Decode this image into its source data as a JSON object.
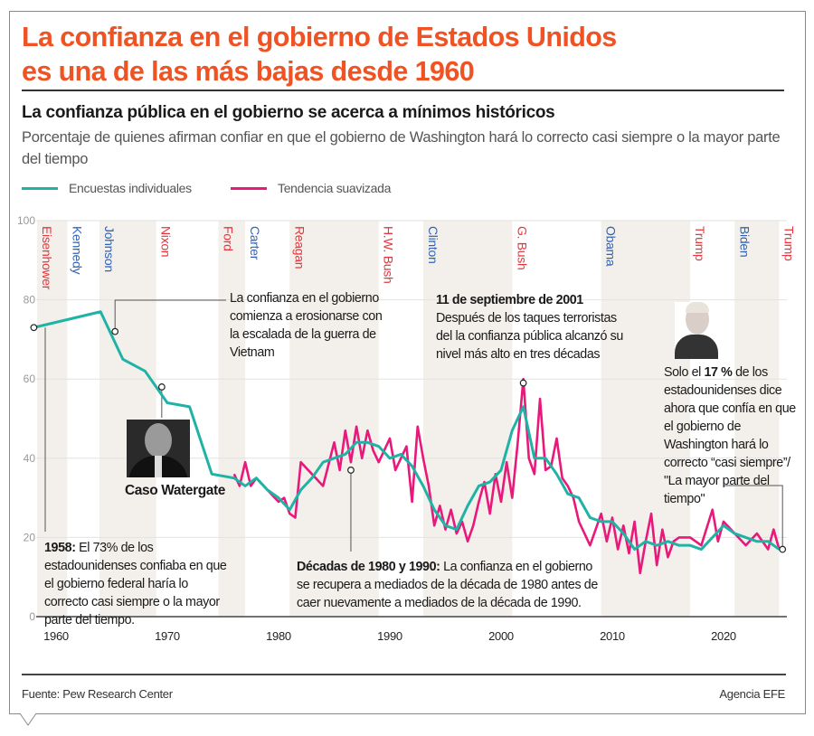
{
  "header": {
    "title_line1": "La confianza en el gobierno de Estados Unidos",
    "title_line2": "es una de las más bajas desde 1960",
    "subtitle": "La confianza pública en el gobierno se acerca a mínimos históricos",
    "description": "Porcentaje de quienes afirman confiar en que el gobierno de Washington hará lo correcto casi siempre o la mayor parte del tiempo"
  },
  "colors": {
    "title": "#f05323",
    "teal": "#1fb3a6",
    "pink": "#e8197a",
    "republican": "#e8343c",
    "democrat": "#2f63b8",
    "band": "#f3f0eb"
  },
  "chart_data": {
    "type": "line",
    "xlim": [
      1958,
      2026
    ],
    "ylim": [
      0,
      100
    ],
    "yticks": [
      0,
      20,
      40,
      60,
      80,
      100
    ],
    "xticks": [
      1960,
      1970,
      1980,
      1990,
      2000,
      2010,
      2020
    ],
    "grid": true,
    "legend_position": "top-left",
    "series": [
      {
        "name": "Encuestas individuales",
        "color": "#1fb3a6",
        "points": [
          [
            1958,
            73
          ],
          [
            1964,
            77
          ],
          [
            1966,
            65
          ],
          [
            1968,
            62
          ],
          [
            1970,
            54
          ],
          [
            1972,
            53
          ],
          [
            1974,
            36
          ],
          [
            1976,
            35
          ],
          [
            1977,
            33
          ],
          [
            1978,
            35
          ],
          [
            1979,
            32
          ],
          [
            1980,
            30
          ],
          [
            1981,
            27
          ],
          [
            1982,
            32
          ],
          [
            1983,
            35
          ],
          [
            1984,
            39
          ],
          [
            1985,
            40
          ],
          [
            1986,
            41
          ],
          [
            1987,
            44
          ],
          [
            1988,
            44
          ],
          [
            1989,
            43
          ],
          [
            1990,
            40
          ],
          [
            1991,
            41
          ],
          [
            1992,
            38
          ],
          [
            1993,
            33
          ],
          [
            1994,
            27
          ],
          [
            1995,
            23
          ],
          [
            1996,
            22
          ],
          [
            1997,
            28
          ],
          [
            1998,
            33
          ],
          [
            1999,
            34
          ],
          [
            2000,
            37
          ],
          [
            2001,
            47
          ],
          [
            2002,
            53
          ],
          [
            2003,
            40
          ],
          [
            2004,
            40
          ],
          [
            2005,
            36
          ],
          [
            2006,
            31
          ],
          [
            2007,
            30
          ],
          [
            2008,
            25
          ],
          [
            2009,
            24
          ],
          [
            2010,
            24
          ],
          [
            2011,
            21
          ],
          [
            2012,
            17
          ],
          [
            2013,
            19
          ],
          [
            2014,
            18
          ],
          [
            2015,
            19
          ],
          [
            2016,
            18
          ],
          [
            2017,
            18
          ],
          [
            2018,
            17
          ],
          [
            2019,
            20
          ],
          [
            2020,
            23
          ],
          [
            2021,
            21
          ],
          [
            2022,
            20
          ],
          [
            2023,
            19
          ],
          [
            2024,
            19
          ],
          [
            2025,
            17
          ]
        ]
      },
      {
        "name": "Tendencia suavizada",
        "color": "#e8197a",
        "points": [
          [
            1976,
            36
          ],
          [
            1976.5,
            33
          ],
          [
            1977,
            39
          ],
          [
            1977.5,
            33
          ],
          [
            1978,
            35
          ],
          [
            1979,
            32
          ],
          [
            1980,
            29
          ],
          [
            1980.5,
            30
          ],
          [
            1981,
            26
          ],
          [
            1981.5,
            25
          ],
          [
            1982,
            39
          ],
          [
            1983,
            36
          ],
          [
            1984,
            33
          ],
          [
            1985,
            44
          ],
          [
            1985.5,
            37
          ],
          [
            1986,
            47
          ],
          [
            1986.5,
            39
          ],
          [
            1987,
            48
          ],
          [
            1987.5,
            40
          ],
          [
            1988,
            47
          ],
          [
            1988.5,
            42
          ],
          [
            1989,
            39
          ],
          [
            1990,
            45
          ],
          [
            1990.5,
            37
          ],
          [
            1991,
            40
          ],
          [
            1991.5,
            43
          ],
          [
            1992,
            29
          ],
          [
            1992.5,
            48
          ],
          [
            1993,
            40
          ],
          [
            1993.5,
            33
          ],
          [
            1994,
            23
          ],
          [
            1994.5,
            28
          ],
          [
            1995,
            22
          ],
          [
            1995.5,
            27
          ],
          [
            1996,
            21
          ],
          [
            1996.5,
            24
          ],
          [
            1997,
            19
          ],
          [
            1997.5,
            23
          ],
          [
            1998,
            29
          ],
          [
            1998.5,
            34
          ],
          [
            1999,
            26
          ],
          [
            1999.5,
            36
          ],
          [
            2000,
            29
          ],
          [
            2000.5,
            39
          ],
          [
            2001,
            30
          ],
          [
            2001.5,
            44
          ],
          [
            2002,
            60
          ],
          [
            2002.5,
            40
          ],
          [
            2003,
            36
          ],
          [
            2003.5,
            55
          ],
          [
            2004,
            37
          ],
          [
            2004.5,
            38
          ],
          [
            2005,
            45
          ],
          [
            2005.5,
            35
          ],
          [
            2006,
            33
          ],
          [
            2006.5,
            30
          ],
          [
            2007,
            24
          ],
          [
            2008,
            18
          ],
          [
            2009,
            26
          ],
          [
            2009.5,
            19
          ],
          [
            2010,
            25
          ],
          [
            2010.5,
            17
          ],
          [
            2011,
            23
          ],
          [
            2011.5,
            16
          ],
          [
            2012,
            24
          ],
          [
            2012.5,
            11
          ],
          [
            2013,
            19
          ],
          [
            2013.5,
            26
          ],
          [
            2014,
            13
          ],
          [
            2014.5,
            22
          ],
          [
            2015,
            15
          ],
          [
            2015.5,
            19
          ],
          [
            2016,
            20
          ],
          [
            2017,
            20
          ],
          [
            2018,
            18
          ],
          [
            2019,
            27
          ],
          [
            2019.5,
            19
          ],
          [
            2020,
            24
          ],
          [
            2022,
            18
          ],
          [
            2023,
            21
          ],
          [
            2024,
            17
          ],
          [
            2024.5,
            22
          ],
          [
            2025,
            17
          ]
        ]
      }
    ],
    "presidents": [
      {
        "name": "Eisenhower",
        "party": "R",
        "start": 1958.3,
        "end": 1961,
        "shaded": true
      },
      {
        "name": "Kennedy",
        "party": "D",
        "start": 1961,
        "end": 1963.9,
        "shaded": false
      },
      {
        "name": "Johnson",
        "party": "D",
        "start": 1963.9,
        "end": 1969,
        "shaded": true
      },
      {
        "name": "Nixon",
        "party": "R",
        "start": 1969,
        "end": 1974.6,
        "shaded": false
      },
      {
        "name": "Ford",
        "party": "R",
        "start": 1974.6,
        "end": 1977,
        "shaded": true
      },
      {
        "name": "Carter",
        "party": "D",
        "start": 1977,
        "end": 1981,
        "shaded": false
      },
      {
        "name": "Reagan",
        "party": "R",
        "start": 1981,
        "end": 1989,
        "shaded": true
      },
      {
        "name": "H.W. Bush",
        "party": "R",
        "start": 1989,
        "end": 1993,
        "shaded": false
      },
      {
        "name": "Clinton",
        "party": "D",
        "start": 1993,
        "end": 2001,
        "shaded": true
      },
      {
        "name": "G. Bush",
        "party": "R",
        "start": 2001,
        "end": 2009,
        "shaded": false
      },
      {
        "name": "Obama",
        "party": "D",
        "start": 2009,
        "end": 2017,
        "shaded": true
      },
      {
        "name": "Trump",
        "party": "R",
        "start": 2017,
        "end": 2021,
        "shaded": false
      },
      {
        "name": "Biden",
        "party": "D",
        "start": 2021,
        "end": 2025,
        "shaded": true
      },
      {
        "name": "Trump",
        "party": "R",
        "start": 2025,
        "end": 2026.5,
        "shaded": false
      }
    ],
    "markers": [
      [
        1958,
        73
      ],
      [
        1965.3,
        72
      ],
      [
        1969.5,
        58
      ],
      [
        1986.5,
        37
      ],
      [
        2002,
        59
      ],
      [
        2025.3,
        17
      ]
    ]
  },
  "annotations": {
    "a1958_bold": "1958:",
    "a1958_text": " El 73% de los estadounidenses confiaba en que el gobierno federal haría lo correcto casi siempre o la mayor parte del tiempo.",
    "vietnam": "La confianza en el gobierno comienza a erosionarse con la escalada de la guerra de Vietnam",
    "watergate": "Caso Watergate",
    "decadas_bold": "Décadas de 1980 y 1990:",
    "decadas_text": " La confianza en el gobierno se recupera a mediados de la década de 1980 antes de caer nuevamente a mediados de la década de 1990.",
    "sept_bold": "11 de septiembre de 2001",
    "sept_text": "Después de los taques terroristas del la confianza pública alcanzó su nivel más alto en tres décadas",
    "now_pre": "Solo el ",
    "now_bold": "17 %",
    "now_text": " de los estadounidenses dice ahora que confía en que el gobierno de Washington hará lo correcto “casi siempre”/ \"La mayor parte del tiempo\""
  },
  "footer": {
    "source": "Fuente: Pew Research Center",
    "agency": "Agencia EFE"
  }
}
